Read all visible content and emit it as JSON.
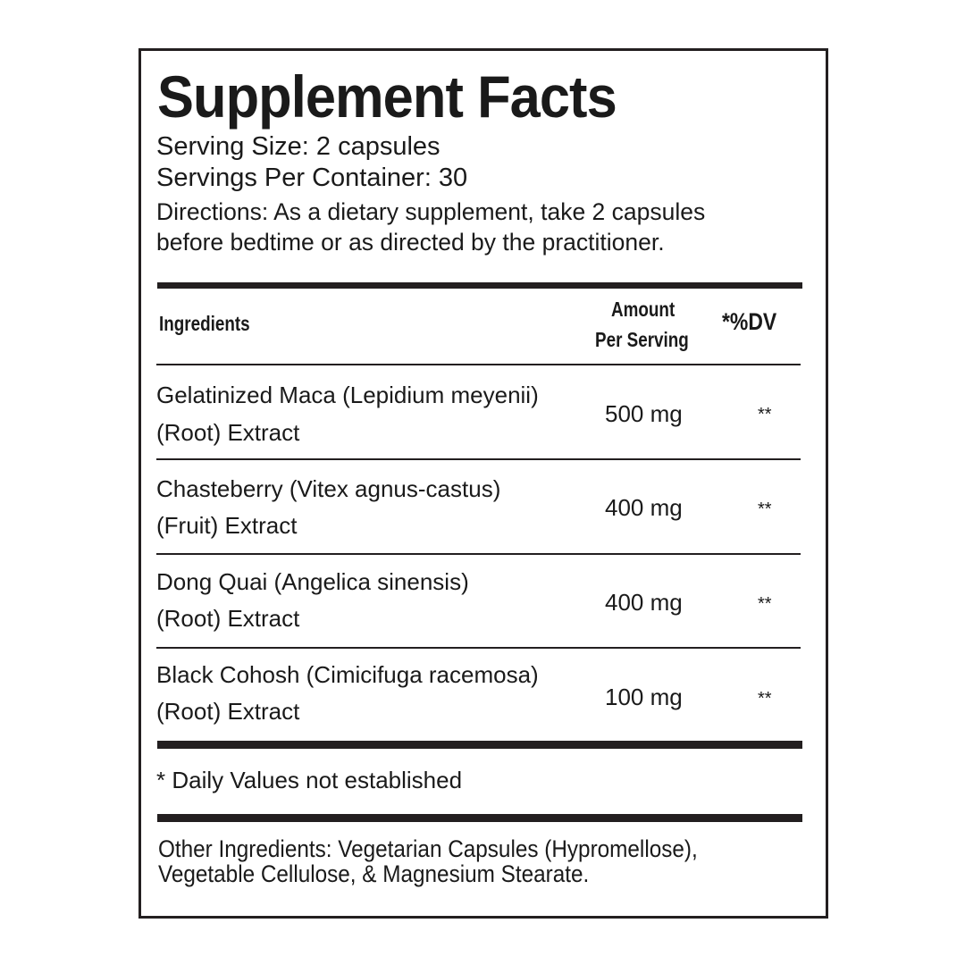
{
  "title": "Supplement Facts",
  "serving_size": "Serving Size: 2 capsules",
  "servings_per_container": "Servings Per Container: 30",
  "directions": [
    "Directions:  As a dietary supplement, take 2 capsules",
    "before bedtime or as directed by the practitioner."
  ],
  "table": {
    "headers": {
      "ingredients": "Ingredients",
      "amount_line1": "Amount",
      "amount_line2": "Per Serving",
      "dv": "*%DV"
    },
    "rows": [
      {
        "name_line1": "Gelatinized Maca (Lepidium meyenii)",
        "name_line2": "(Root) Extract",
        "amount": "500 mg",
        "dv": "**"
      },
      {
        "name_line1": "Chasteberry (Vitex agnus-castus)",
        "name_line2": "(Fruit) Extract",
        "amount": "400 mg",
        "dv": "**"
      },
      {
        "name_line1": "Dong Quai (Angelica sinensis)",
        "name_line2": "(Root) Extract",
        "amount": "400 mg",
        "dv": "**"
      },
      {
        "name_line1": "Black Cohosh (Cimicifuga racemosa)",
        "name_line2": "(Root) Extract",
        "amount": "100 mg",
        "dv": "**"
      }
    ]
  },
  "footnote": "* Daily Values not established",
  "other_ingredients": [
    "Other Ingredients: Vegetarian Capsules (Hypromellose),",
    "Vegetable Cellulose, & Magnesium Stearate."
  ]
}
